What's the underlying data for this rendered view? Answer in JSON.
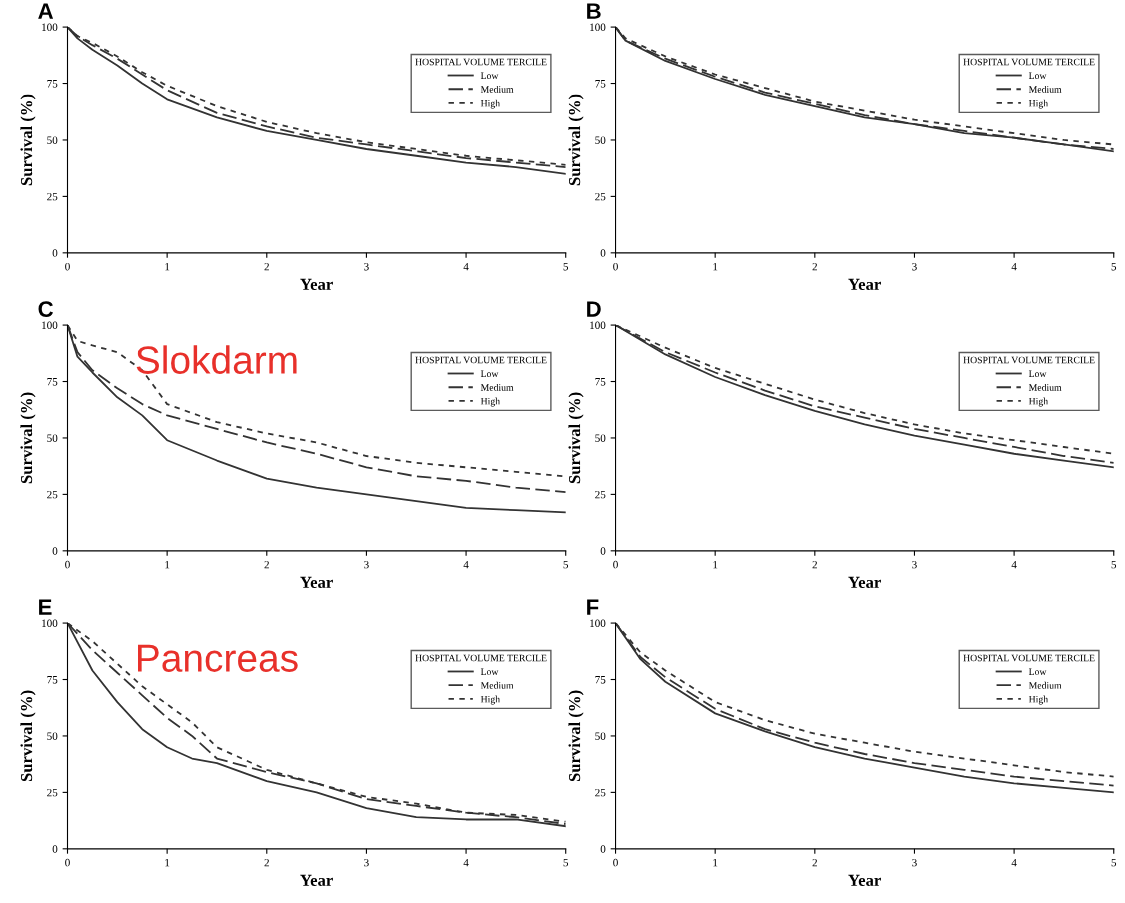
{
  "chart_data": [
    {
      "type": "line",
      "title": "A",
      "xlabel": "Year",
      "ylabel": "Survival (%)",
      "legend_title": "HOSPITAL VOLUME TERCILE",
      "legend": "top right",
      "xlim": [
        0,
        5
      ],
      "ylim": [
        0,
        100
      ],
      "xticks": [
        0,
        1,
        2,
        3,
        4,
        5
      ],
      "yticks": [
        0,
        25,
        50,
        75,
        100
      ],
      "x": [
        0,
        0.1,
        0.25,
        0.5,
        0.75,
        1,
        1.5,
        2,
        2.5,
        3,
        3.5,
        4,
        4.5,
        5
      ],
      "series": [
        {
          "name": "Low",
          "color": "#333333",
          "line_style": "solid",
          "values": [
            100,
            95,
            90,
            83,
            75,
            68,
            60,
            54,
            50,
            46,
            43,
            40,
            38,
            35
          ]
        },
        {
          "name": "Medium",
          "color": "#333333",
          "line_style": "dashed",
          "values": [
            100,
            96,
            92,
            86,
            79,
            72,
            62,
            56,
            51,
            48,
            45,
            42,
            40,
            38
          ]
        },
        {
          "name": "High",
          "color": "#333333",
          "line_style": "dotted",
          "values": [
            100,
            96,
            93,
            87,
            80,
            74,
            65,
            58,
            53,
            49,
            46,
            43,
            41,
            39
          ]
        }
      ]
    },
    {
      "type": "line",
      "title": "B",
      "xlabel": "Year",
      "ylabel": "Survival (%)",
      "legend_title": "HOSPITAL VOLUME TERCILE",
      "legend": "top right",
      "xlim": [
        0,
        5
      ],
      "ylim": [
        0,
        100
      ],
      "xticks": [
        0,
        1,
        2,
        3,
        4,
        5
      ],
      "yticks": [
        0,
        25,
        50,
        75,
        100
      ],
      "x": [
        0,
        0.1,
        0.5,
        1,
        1.5,
        2,
        2.5,
        3,
        3.5,
        4,
        4.5,
        5
      ],
      "series": [
        {
          "name": "Low",
          "color": "#333333",
          "line_style": "solid",
          "values": [
            100,
            94,
            85,
            77,
            70,
            65,
            60,
            57,
            53,
            51,
            48,
            45
          ]
        },
        {
          "name": "Medium",
          "color": "#333333",
          "line_style": "dashed",
          "values": [
            100,
            94,
            86,
            78,
            71,
            66,
            61,
            57,
            54,
            51,
            48,
            46
          ]
        },
        {
          "name": "High",
          "color": "#333333",
          "line_style": "dotted",
          "values": [
            100,
            95,
            87,
            79,
            73,
            67,
            63,
            59,
            56,
            53,
            50,
            48
          ]
        }
      ]
    },
    {
      "type": "line",
      "title": "C",
      "xlabel": "Year",
      "ylabel": "Survival (%)",
      "legend_title": "HOSPITAL VOLUME TERCILE",
      "legend": "top right",
      "annotations": [
        "Slokdarm"
      ],
      "xlim": [
        0,
        5
      ],
      "ylim": [
        0,
        100
      ],
      "xticks": [
        0,
        1,
        2,
        3,
        4,
        5
      ],
      "yticks": [
        0,
        25,
        50,
        75,
        100
      ],
      "x": [
        0,
        0.1,
        0.25,
        0.5,
        0.75,
        1,
        1.5,
        2,
        2.5,
        3,
        3.5,
        4,
        4.5,
        5
      ],
      "series": [
        {
          "name": "Low",
          "color": "#333333",
          "line_style": "solid",
          "values": [
            100,
            86,
            79,
            68,
            60,
            49,
            40,
            32,
            28,
            25,
            22,
            19,
            18,
            17
          ]
        },
        {
          "name": "Medium",
          "color": "#333333",
          "line_style": "dashed",
          "values": [
            100,
            88,
            80,
            72,
            65,
            60,
            54,
            48,
            43,
            37,
            33,
            31,
            28,
            26
          ]
        },
        {
          "name": "High",
          "color": "#333333",
          "line_style": "dotted",
          "values": [
            100,
            93,
            91,
            88,
            80,
            65,
            57,
            52,
            48,
            42,
            39,
            37,
            35,
            33
          ]
        }
      ]
    },
    {
      "type": "line",
      "title": "D",
      "xlabel": "Year",
      "ylabel": "Survival (%)",
      "legend_title": "HOSPITAL VOLUME TERCILE",
      "legend": "top right",
      "xlim": [
        0,
        5
      ],
      "ylim": [
        0,
        100
      ],
      "xticks": [
        0,
        1,
        2,
        3,
        4,
        5
      ],
      "yticks": [
        0,
        25,
        50,
        75,
        100
      ],
      "x": [
        0,
        0.5,
        1,
        1.5,
        2,
        2.5,
        3,
        3.5,
        4,
        4.5,
        5
      ],
      "series": [
        {
          "name": "Low",
          "color": "#333333",
          "line_style": "solid",
          "values": [
            100,
            87,
            77,
            69,
            62,
            56,
            51,
            47,
            43,
            40,
            37
          ]
        },
        {
          "name": "Medium",
          "color": "#333333",
          "line_style": "dashed",
          "values": [
            100,
            88,
            79,
            71,
            64,
            59,
            54,
            50,
            46,
            42,
            39
          ]
        },
        {
          "name": "High",
          "color": "#333333",
          "line_style": "dotted",
          "values": [
            100,
            90,
            81,
            74,
            67,
            61,
            56,
            52,
            49,
            46,
            43
          ]
        }
      ]
    },
    {
      "type": "line",
      "title": "E",
      "xlabel": "Year",
      "ylabel": "Survival (%)",
      "legend_title": "HOSPITAL VOLUME TERCILE",
      "legend": "top right",
      "annotations": [
        "Pancreas"
      ],
      "xlim": [
        0,
        5
      ],
      "ylim": [
        0,
        100
      ],
      "xticks": [
        0,
        1,
        2,
        3,
        4,
        5
      ],
      "yticks": [
        0,
        25,
        50,
        75,
        100
      ],
      "x": [
        0,
        0.25,
        0.5,
        0.75,
        1,
        1.25,
        1.5,
        2,
        2.5,
        3,
        3.5,
        4,
        4.5,
        5
      ],
      "series": [
        {
          "name": "Low",
          "color": "#333333",
          "line_style": "solid",
          "values": [
            100,
            79,
            65,
            53,
            45,
            40,
            38,
            30,
            25,
            18,
            14,
            13,
            13,
            10
          ]
        },
        {
          "name": "Medium",
          "color": "#333333",
          "line_style": "dashed",
          "values": [
            100,
            88,
            78,
            68,
            58,
            50,
            40,
            34,
            29,
            22,
            19,
            16,
            14,
            11
          ]
        },
        {
          "name": "High",
          "color": "#333333",
          "line_style": "dotted",
          "values": [
            100,
            92,
            82,
            72,
            64,
            56,
            45,
            35,
            29,
            23,
            20,
            16,
            15,
            12
          ]
        }
      ]
    },
    {
      "type": "line",
      "title": "F",
      "xlabel": "Year",
      "ylabel": "Survival (%)",
      "legend_title": "HOSPITAL VOLUME TERCILE",
      "legend": "top right",
      "xlim": [
        0,
        5
      ],
      "ylim": [
        0,
        100
      ],
      "xticks": [
        0,
        1,
        2,
        3,
        4,
        5
      ],
      "yticks": [
        0,
        25,
        50,
        75,
        100
      ],
      "x": [
        0,
        0.25,
        0.5,
        1,
        1.5,
        2,
        2.5,
        3,
        3.5,
        4,
        4.5,
        5
      ],
      "series": [
        {
          "name": "Low",
          "color": "#333333",
          "line_style": "solid",
          "values": [
            100,
            84,
            74,
            60,
            52,
            45,
            40,
            36,
            32,
            29,
            27,
            25
          ]
        },
        {
          "name": "Medium",
          "color": "#333333",
          "line_style": "dashed",
          "values": [
            100,
            85,
            76,
            62,
            53,
            47,
            42,
            38,
            35,
            32,
            30,
            28
          ]
        },
        {
          "name": "High",
          "color": "#333333",
          "line_style": "dotted",
          "values": [
            100,
            87,
            79,
            65,
            57,
            51,
            47,
            43,
            40,
            37,
            34,
            32
          ]
        }
      ]
    }
  ]
}
